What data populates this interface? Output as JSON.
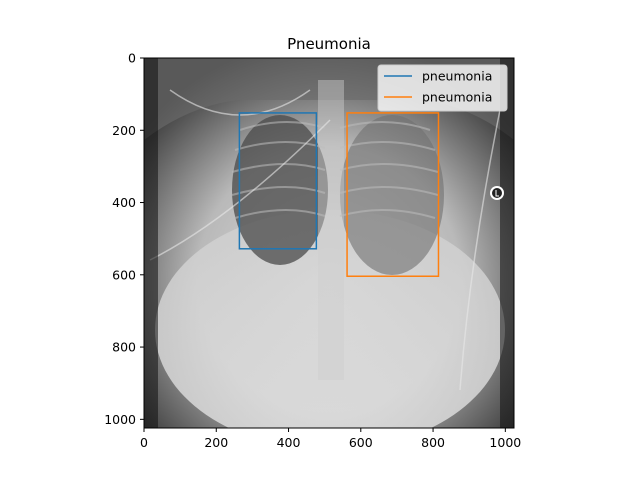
{
  "chart_data": {
    "type": "image",
    "title": "Pneumonia",
    "xlabel": "",
    "ylabel": "",
    "xlim": [
      0,
      1024
    ],
    "ylim": [
      1024,
      0
    ],
    "x_ticks": [
      0,
      200,
      400,
      600,
      800,
      1000
    ],
    "y_ticks": [
      0,
      200,
      400,
      600,
      800,
      1000
    ],
    "image_content": "frontal chest x-ray",
    "grid": false,
    "legend_position": "top-right",
    "series": [
      {
        "name": "pneumonia",
        "color": "#1f77b4",
        "shape": "rectangle",
        "x": [
          264,
          477
        ],
        "y": [
          152,
          528
        ]
      },
      {
        "name": "pneumonia",
        "color": "#ff7f0e",
        "shape": "rectangle",
        "x": [
          562,
          815
        ],
        "y": [
          152,
          604
        ]
      }
    ]
  }
}
